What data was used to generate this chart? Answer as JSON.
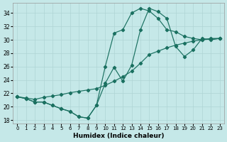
{
  "bg_color": "#c5e8e8",
  "grid_color": "#afd4d4",
  "line_color": "#1a7060",
  "xlabel": "Humidex (Indice chaleur)",
  "xlim": [
    -0.5,
    23.5
  ],
  "ylim": [
    17.5,
    35.5
  ],
  "xticks": [
    0,
    1,
    2,
    3,
    4,
    5,
    6,
    7,
    8,
    9,
    10,
    11,
    12,
    13,
    14,
    15,
    16,
    17,
    18,
    19,
    20,
    21,
    22,
    23
  ],
  "yticks": [
    18,
    20,
    22,
    24,
    26,
    28,
    30,
    32,
    34
  ],
  "line1_x": [
    0,
    1,
    2,
    3,
    4,
    5,
    6,
    7,
    8,
    9,
    10,
    11,
    12,
    13,
    14,
    15,
    16,
    17,
    18,
    19,
    20,
    21,
    22,
    23
  ],
  "line1_y": [
    21.5,
    21.2,
    20.7,
    20.7,
    20.2,
    19.7,
    19.3,
    18.5,
    18.3,
    20.2,
    26.0,
    31.0,
    31.5,
    34.0,
    34.7,
    34.3,
    33.2,
    31.5,
    31.2,
    30.5,
    30.2,
    30.0,
    30.2,
    30.2
  ],
  "line2_x": [
    0,
    1,
    2,
    3,
    4,
    5,
    6,
    7,
    8,
    9,
    10,
    11,
    12,
    13,
    14,
    15,
    16,
    17,
    18,
    19,
    20,
    21,
    22,
    23
  ],
  "line2_y": [
    21.5,
    21.2,
    20.7,
    20.7,
    20.2,
    19.7,
    19.3,
    18.5,
    18.3,
    20.2,
    23.5,
    25.9,
    23.8,
    26.2,
    31.5,
    34.7,
    34.2,
    33.2,
    29.0,
    27.5,
    28.5,
    30.2,
    30.0,
    30.2
  ],
  "line3_x": [
    0,
    1,
    2,
    3,
    4,
    5,
    6,
    7,
    8,
    9,
    10,
    11,
    12,
    13,
    14,
    15,
    16,
    17,
    18,
    19,
    20,
    21,
    22,
    23
  ],
  "line3_y": [
    21.5,
    21.3,
    21.1,
    21.4,
    21.6,
    21.8,
    22.1,
    22.3,
    22.5,
    22.7,
    23.2,
    23.8,
    24.5,
    25.3,
    26.5,
    27.8,
    28.3,
    28.8,
    29.2,
    29.5,
    29.8,
    30.0,
    30.1,
    30.2
  ]
}
